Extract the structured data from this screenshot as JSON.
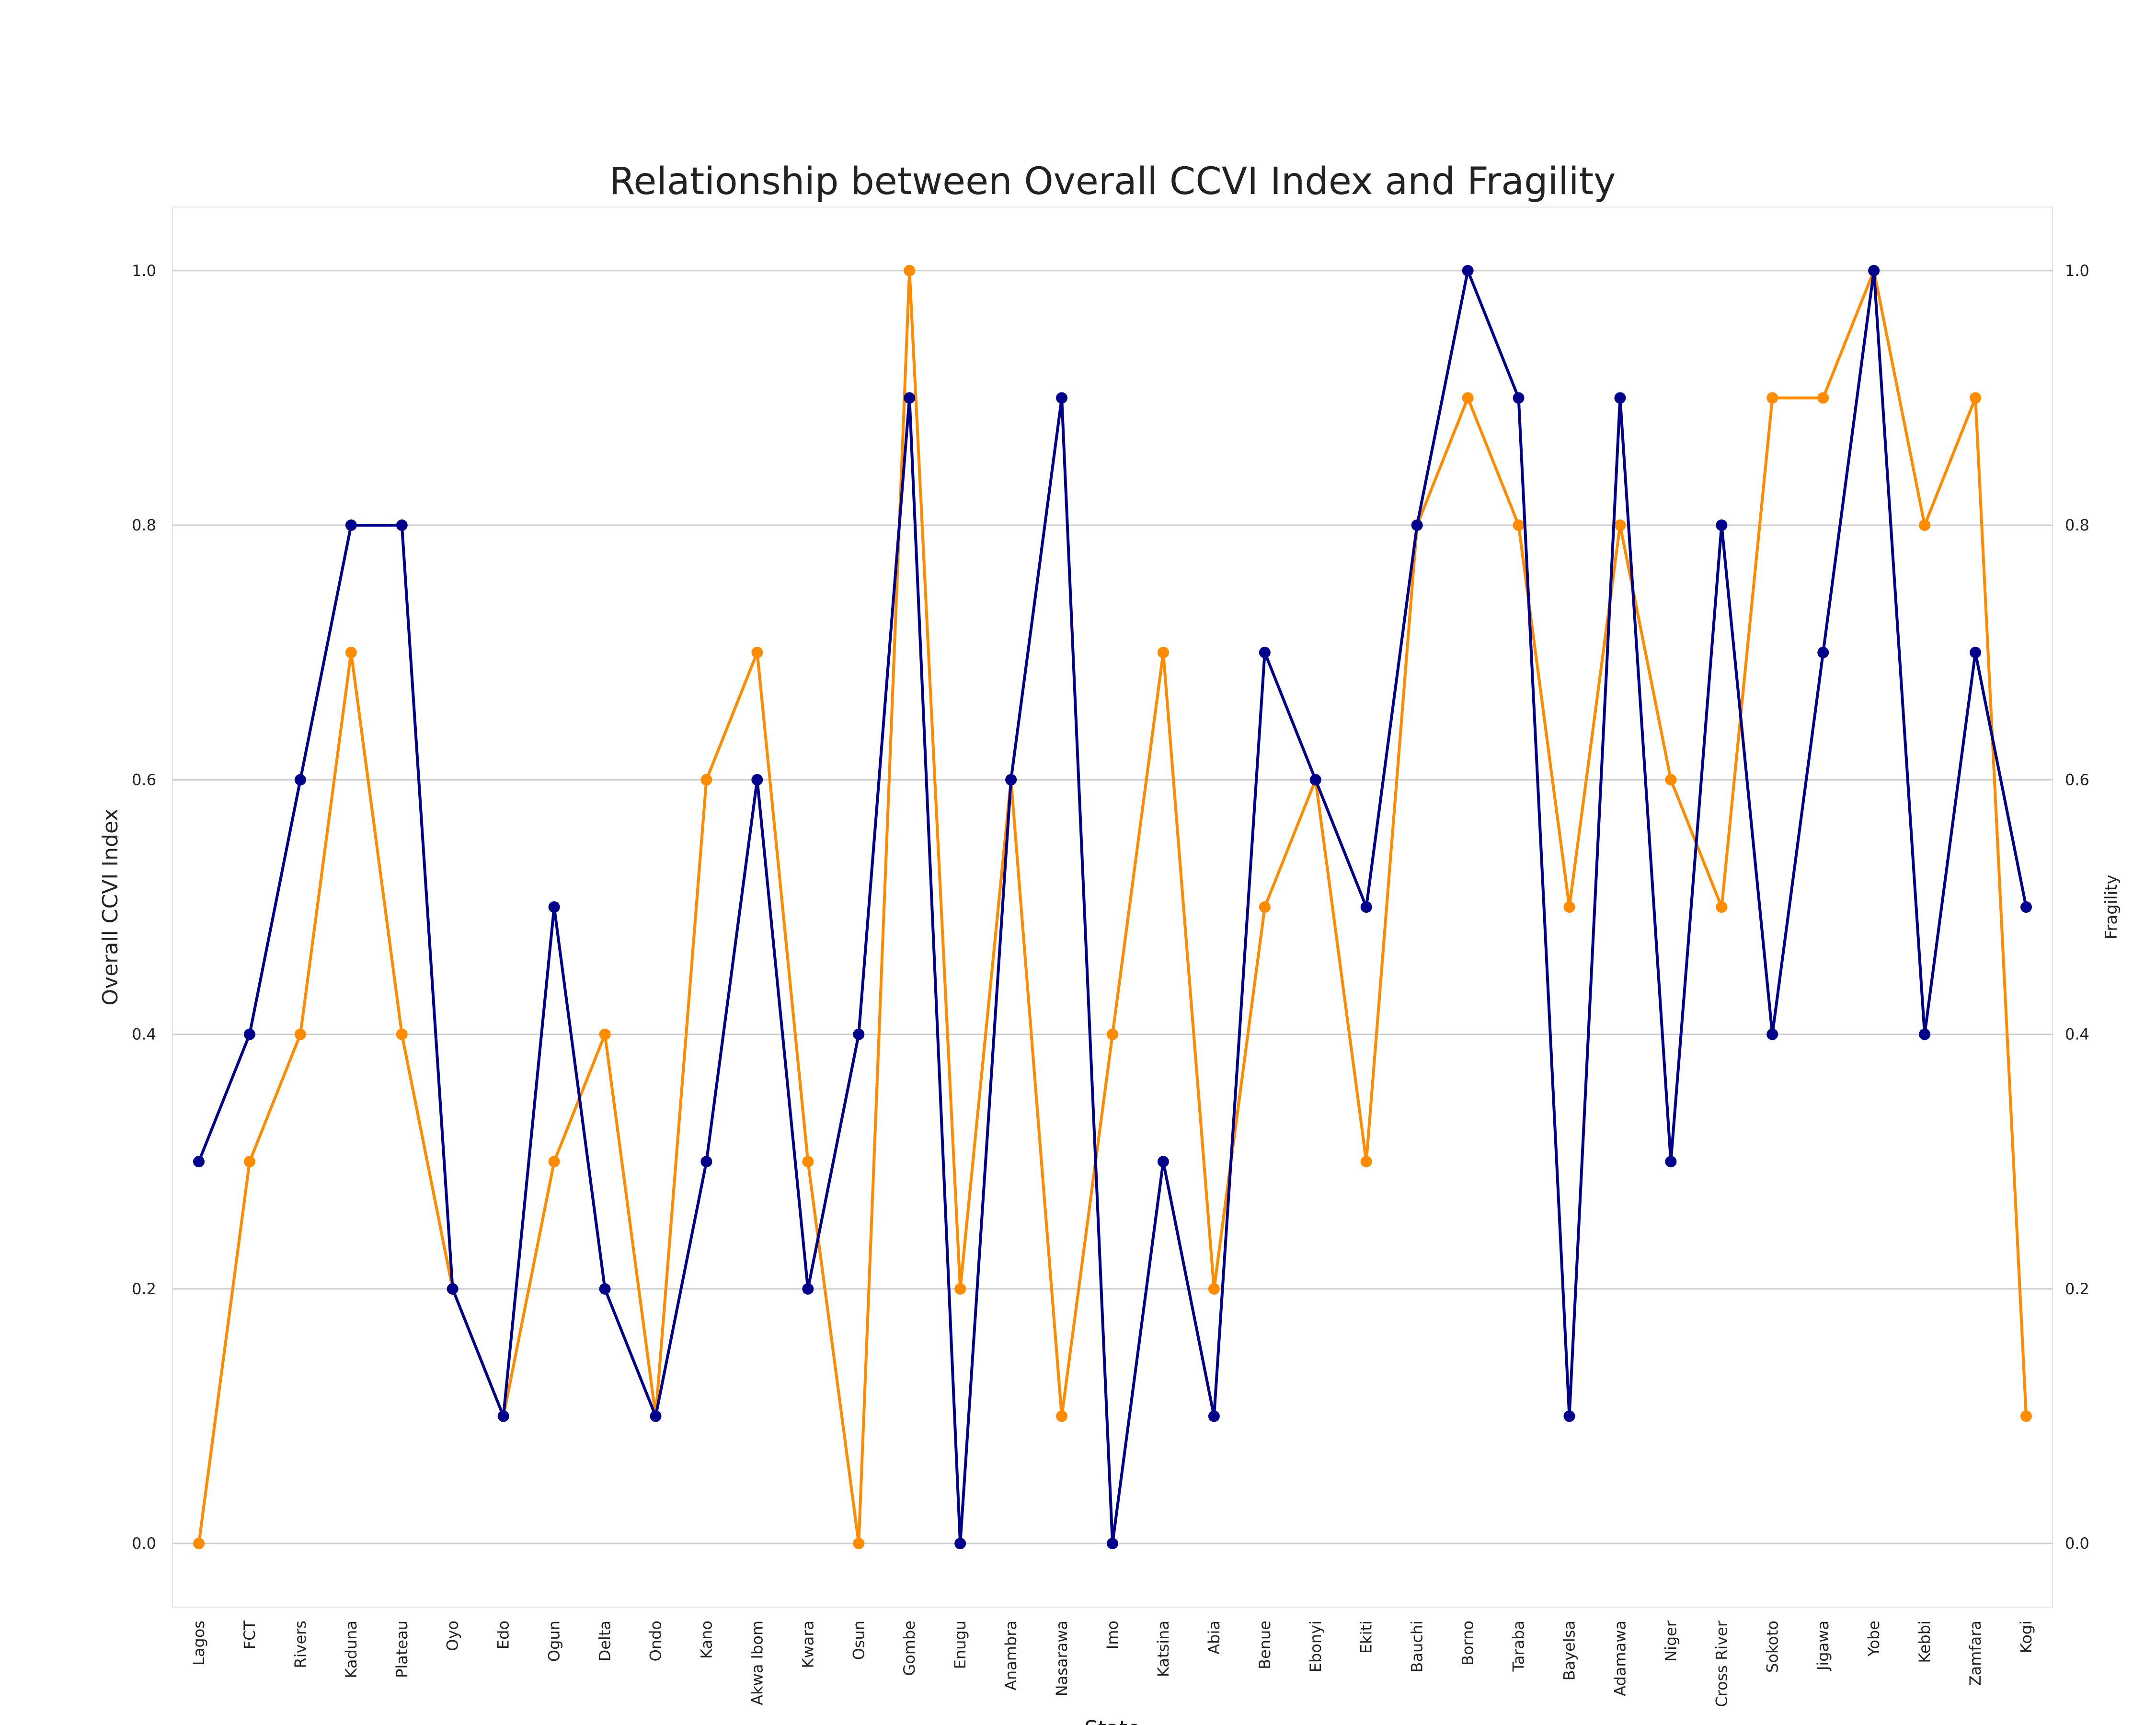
{
  "chart_data": {
    "type": "line",
    "title": "Relationship between Overall CCVI Index and Fragility",
    "xlabel": "State",
    "ylabel": "Overall CCVI Index",
    "y2label": "Fragility",
    "categories": [
      "Lagos",
      "FCT",
      "Rivers",
      "Kaduna",
      "Plateau",
      "Oyo",
      "Edo",
      "Ogun",
      "Delta",
      "Ondo",
      "Kano",
      "Akwa Ibom",
      "Kwara",
      "Osun",
      "Gombe",
      "Enugu",
      "Anambra",
      "Nasarawa",
      "Imo",
      "Katsina",
      "Abia",
      "Benue",
      "Ebonyi",
      "Ekiti",
      "Bauchi",
      "Borno",
      "Taraba",
      "Bayelsa",
      "Adamawa",
      "Niger",
      "Cross River",
      "Sokoto",
      "Jigawa",
      "Yobe",
      "Kebbi",
      "Zamfara",
      "Kogi"
    ],
    "ylim": [
      -0.05,
      1.05
    ],
    "y2lim": [
      -0.05,
      1.05
    ],
    "yticks": [
      "0.0",
      "0.2",
      "0.4",
      "0.6",
      "0.8",
      "1.0"
    ],
    "grid": "horizontal",
    "series": [
      {
        "axis": "left",
        "color": "#00008b",
        "values": [
          0.3,
          0.4,
          0.6,
          0.8,
          0.8,
          0.2,
          0.1,
          0.5,
          0.2,
          0.1,
          0.3,
          0.6,
          0.2,
          0.4,
          0.9,
          0.0,
          0.6,
          0.9,
          0.0,
          0.3,
          0.1,
          0.7,
          0.6,
          0.5,
          0.8,
          1.0,
          0.9,
          0.1,
          0.9,
          0.3,
          0.8,
          0.4,
          0.7,
          1.0,
          0.4,
          0.7,
          0.5
        ]
      },
      {
        "axis": "right",
        "color": "#ff8c00",
        "values": [
          0.0,
          0.3,
          0.4,
          0.7,
          0.4,
          0.2,
          0.1,
          0.3,
          0.4,
          0.1,
          0.6,
          0.7,
          0.3,
          0.0,
          1.0,
          0.2,
          0.6,
          0.1,
          0.4,
          0.7,
          0.2,
          0.5,
          0.6,
          0.3,
          0.8,
          0.9,
          0.8,
          0.5,
          0.8,
          0.6,
          0.5,
          0.9,
          0.9,
          1.0,
          0.8,
          0.9,
          0.1
        ]
      }
    ]
  }
}
